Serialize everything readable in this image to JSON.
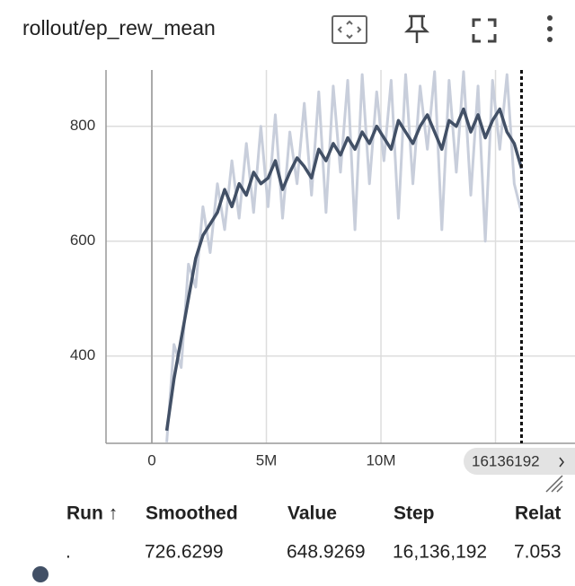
{
  "header": {
    "title": "rollout/ep_rew_mean"
  },
  "chart_data": {
    "type": "line",
    "x": [
      650000,
      966000,
      1282000,
      1598000,
      1914000,
      2230000,
      2546000,
      2862000,
      3178000,
      3494000,
      3810000,
      4126000,
      4442000,
      4758000,
      5074000,
      5390000,
      5706000,
      6022000,
      6338000,
      6654000,
      6970000,
      7286000,
      7602000,
      7918000,
      8234000,
      8550000,
      8866000,
      9182000,
      9498000,
      9814000,
      10130000,
      10446000,
      10762000,
      11078000,
      11394000,
      11710000,
      12026000,
      12342000,
      12658000,
      12974000,
      13290000,
      13606000,
      13922000,
      14238000,
      14554000,
      14870000,
      15186000,
      15502000,
      15818000,
      16136192
    ],
    "series": [
      {
        "color": "#c8cedb",
        "values": [
          250,
          420,
          380,
          560,
          520,
          660,
          580,
          700,
          620,
          740,
          640,
          770,
          650,
          800,
          660,
          820,
          640,
          790,
          700,
          840,
          680,
          860,
          650,
          870,
          720,
          880,
          620,
          890,
          700,
          860,
          740,
          880,
          640,
          890,
          700,
          870,
          760,
          895,
          620,
          880,
          720,
          895,
          680,
          870,
          600,
          880,
          760,
          890,
          700,
          648.9269
        ]
      },
      {
        "color": "#425066",
        "values": [
          270,
          360,
          430,
          500,
          570,
          610,
          630,
          650,
          690,
          660,
          700,
          680,
          720,
          700,
          710,
          740,
          690,
          720,
          745,
          730,
          710,
          760,
          740,
          770,
          750,
          780,
          760,
          790,
          770,
          800,
          780,
          760,
          810,
          790,
          770,
          800,
          820,
          790,
          760,
          810,
          800,
          830,
          790,
          820,
          780,
          810,
          830,
          790,
          770,
          726.6299
        ]
      }
    ],
    "xlim": [
      -2000000,
      18470000
    ],
    "ylim": [
      248,
      898
    ],
    "xticks": [
      {
        "value": 0,
        "label": "0"
      },
      {
        "value": 5000000,
        "label": "5M"
      },
      {
        "value": 10000000,
        "label": "10M"
      },
      {
        "value": 15000000,
        "label": null
      }
    ],
    "yticks": [
      400,
      600,
      800
    ],
    "grid": true,
    "cursor_x": 16136192
  },
  "table": {
    "header": [
      "Run ↑",
      "Smoothed",
      "Value",
      "Step",
      "Relat"
    ],
    "rows": [
      [
        ".",
        "726.6299",
        "648.9269",
        "16,136,192",
        "7.053"
      ]
    ]
  }
}
